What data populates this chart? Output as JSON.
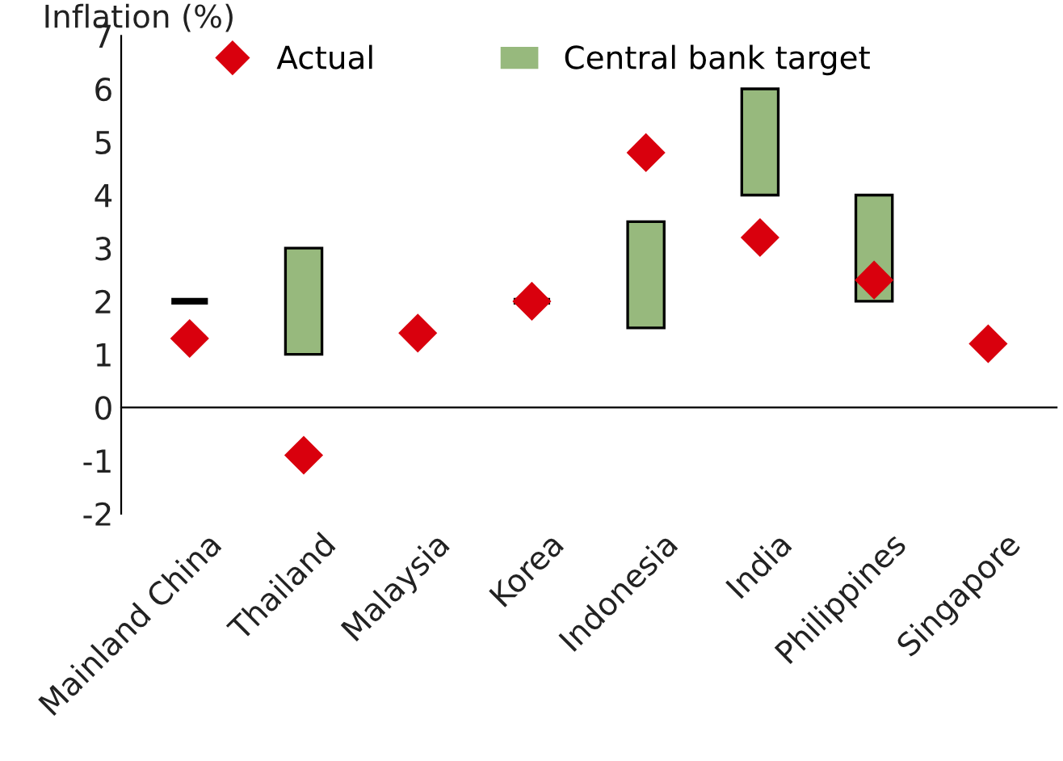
{
  "chart_data": {
    "type": "bar",
    "ylabel": "Inflation (%)",
    "categories": [
      "Mainland China",
      "Thailand",
      "Malaysia",
      "Korea",
      "Indonesia",
      "India",
      "Philippines",
      "Singapore"
    ],
    "series": [
      {
        "name": "Central bank target",
        "color": "#97b97d",
        "colors": [
          "#000000",
          "#97b97d",
          null,
          "#000000",
          "#97b97d",
          "#97b97d",
          "#97b97d",
          null
        ],
        "base": [
          2,
          1,
          null,
          2,
          1.5,
          4,
          2,
          null
        ],
        "values": [
          0,
          2,
          null,
          0,
          2,
          2,
          2,
          null
        ]
      },
      {
        "name": "Actual",
        "type": "scatter",
        "color": "#d9000d",
        "marker": "diamond",
        "values": [
          1.3,
          -0.9,
          1.4,
          2.0,
          4.8,
          3.2,
          2.4,
          1.2
        ]
      }
    ],
    "ylim": [
      -2,
      7
    ],
    "yticks": [
      -2,
      -1,
      0,
      1,
      2,
      3,
      4,
      5,
      6,
      7
    ],
    "legend": "top"
  }
}
